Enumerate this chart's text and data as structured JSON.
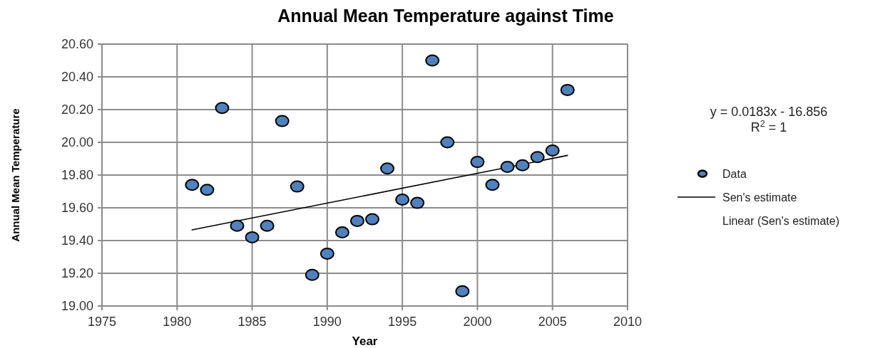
{
  "chart_data": {
    "type": "scatter",
    "title": "Annual Mean Temperature against Time",
    "xlabel": "Year",
    "ylabel": "Annual Mean Temperature",
    "xlim": [
      1975,
      2010
    ],
    "xticks": [
      1975,
      1980,
      1985,
      1990,
      1995,
      2000,
      2005,
      2010
    ],
    "ylim": [
      19,
      20.6
    ],
    "yticks": [
      {
        "value": 19,
        "label": "19.00"
      },
      {
        "value": 19.2,
        "label": "19.20"
      },
      {
        "value": 19.4,
        "label": "19.40"
      },
      {
        "value": 19.6,
        "label": "19.60"
      },
      {
        "value": 19.8,
        "label": "19.80"
      },
      {
        "value": 20,
        "label": "20.00"
      },
      {
        "value": 20.2,
        "label": "20.20"
      },
      {
        "value": 20.4,
        "label": "20.40"
      },
      {
        "value": 20.6,
        "label": "20.60"
      }
    ],
    "grid": true,
    "legend": "right",
    "x": [
      1981,
      1982,
      1983,
      1984,
      1985,
      1986,
      1987,
      1988,
      1989,
      1990,
      1991,
      1992,
      1993,
      1994,
      1995,
      1996,
      1997,
      1998,
      1999,
      2000,
      2001,
      2002,
      2003,
      2004,
      2005,
      2006
    ],
    "series": [
      {
        "name": "Data",
        "marker": "circle",
        "color": "#4f81bd",
        "values": [
          19.74,
          19.71,
          20.21,
          19.49,
          19.42,
          19.49,
          20.13,
          19.73,
          19.19,
          19.32,
          19.45,
          19.52,
          19.53,
          19.84,
          19.65,
          19.63,
          20.5,
          20.0,
          19.09,
          19.88,
          19.74,
          19.85,
          19.86,
          19.91,
          19.95,
          20.32
        ]
      },
      {
        "name": "Sen's estimate",
        "type": "line",
        "marker": "none",
        "color": "#000000",
        "x": [
          1981,
          2006
        ],
        "values": [
          19.465,
          19.92
        ]
      }
    ],
    "annotations": [
      "y = 0.0183x - 16.856",
      "R$^{2}$ = 1",
      "Linear (Sen's estimate)"
    ]
  }
}
